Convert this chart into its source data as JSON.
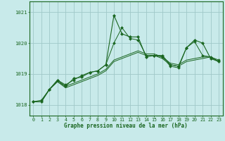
{
  "xlabel": "Graphe pression niveau de la mer (hPa)",
  "background_color": "#c8eaea",
  "grid_color": "#a0c8c8",
  "line_color": "#1a6620",
  "xlim": [
    -0.5,
    23.5
  ],
  "ylim": [
    1017.65,
    1021.35
  ],
  "yticks": [
    1018,
    1019,
    1020,
    1021
  ],
  "xticks": [
    0,
    1,
    2,
    3,
    4,
    5,
    6,
    7,
    8,
    9,
    10,
    11,
    12,
    13,
    14,
    15,
    16,
    17,
    18,
    19,
    20,
    21,
    22,
    23
  ],
  "main_y": [
    1018.1,
    1018.1,
    1018.5,
    1018.8,
    1018.6,
    1018.85,
    1018.9,
    1019.05,
    1019.1,
    1019.3,
    1020.9,
    1020.3,
    1020.2,
    1020.2,
    1019.55,
    1019.6,
    1019.6,
    1019.3,
    1019.25,
    1019.85,
    1020.1,
    1020.0,
    1019.5,
    1019.4
  ],
  "line1_y": [
    1018.1,
    1018.1,
    1018.5,
    1018.75,
    1018.6,
    1018.7,
    1018.8,
    1018.9,
    1019.0,
    1019.15,
    1019.45,
    1019.55,
    1019.65,
    1019.75,
    1019.65,
    1019.65,
    1019.55,
    1019.35,
    1019.3,
    1019.45,
    1019.5,
    1019.55,
    1019.55,
    1019.4
  ],
  "line2_y": [
    1018.1,
    1018.1,
    1018.5,
    1018.75,
    1018.55,
    1018.65,
    1018.75,
    1018.85,
    1018.95,
    1019.1,
    1019.4,
    1019.5,
    1019.6,
    1019.7,
    1019.6,
    1019.6,
    1019.5,
    1019.3,
    1019.25,
    1019.4,
    1019.45,
    1019.5,
    1019.55,
    1019.4
  ],
  "line3_y": [
    1018.1,
    1018.15,
    1018.5,
    1018.8,
    1018.65,
    1018.8,
    1018.95,
    1019.05,
    1019.1,
    1019.3,
    1020.0,
    1020.5,
    1020.15,
    1020.1,
    1019.6,
    1019.6,
    1019.55,
    1019.25,
    1019.2,
    1019.85,
    1020.05,
    1019.6,
    1019.55,
    1019.45
  ]
}
